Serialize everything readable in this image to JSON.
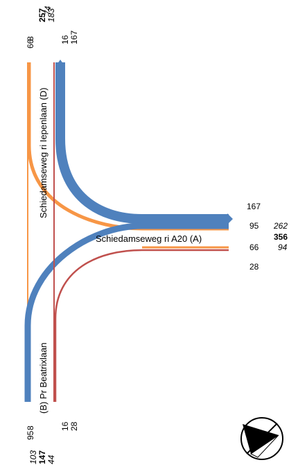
{
  "roads": {
    "north": "Schiedamseweg ri Iepenlaan (D)",
    "east": "Schiedamseweg ri A20 (A)",
    "south": "(B) Pr Beatrixlaan"
  },
  "top": {
    "left_flows": [
      "8",
      "66"
    ],
    "right_flows": [
      "16",
      "167"
    ],
    "totals": {
      "in": "74",
      "total": "257",
      "out": "183"
    }
  },
  "right": {
    "flows": [
      "167",
      "95",
      "66",
      "28"
    ],
    "totals": {
      "in": "262",
      "total": "356",
      "out": "94"
    }
  },
  "bottom": {
    "left_flows": [
      "8",
      "95"
    ],
    "right_flows": [
      "16",
      "28"
    ],
    "totals": {
      "in": "103",
      "total": "147",
      "out": "44"
    }
  },
  "colors": {
    "blue": "#4f81bd",
    "orange": "#f79646",
    "red": "#c0504d"
  },
  "icons": {
    "compass": "north-arrow-icon"
  }
}
